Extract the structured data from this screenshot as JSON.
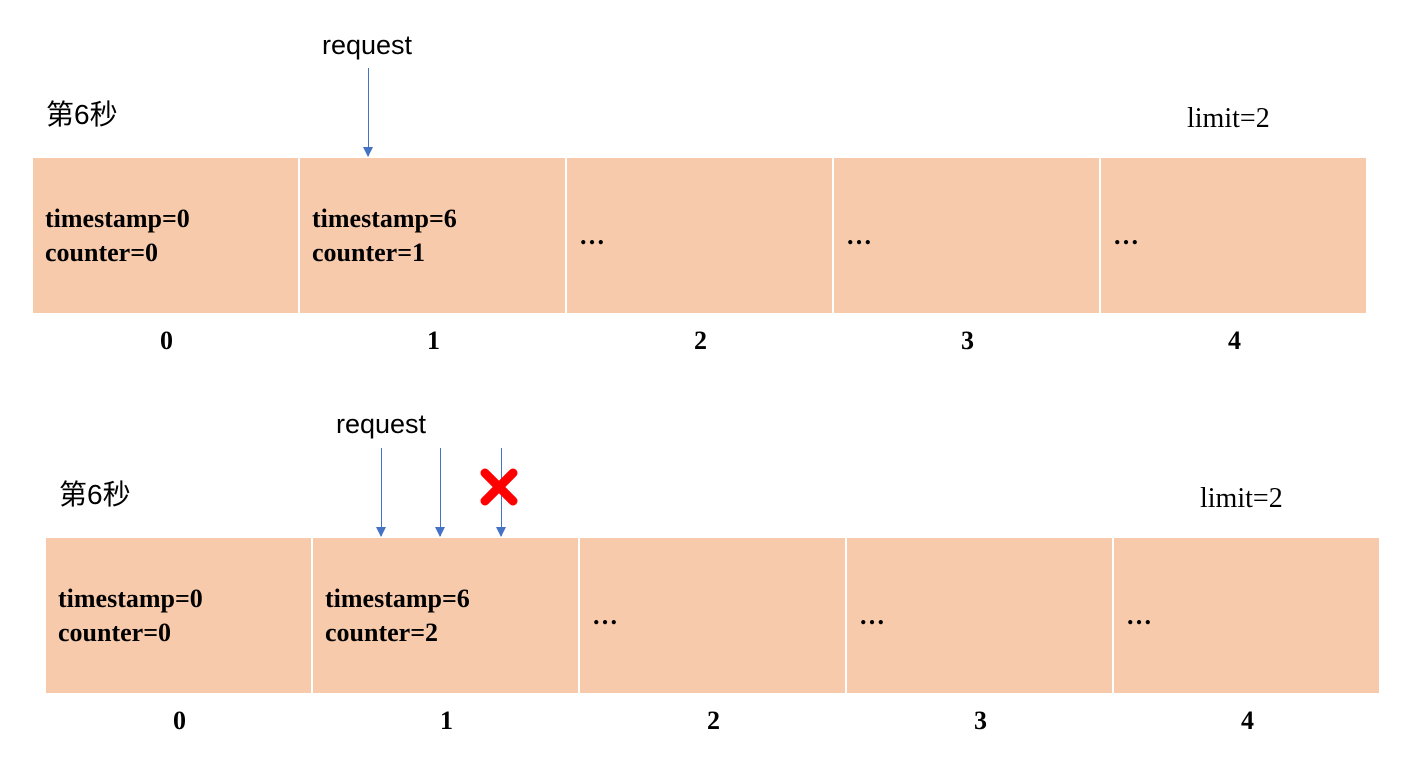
{
  "panels": [
    {
      "title": "第6秒",
      "limit_label": "limit=2",
      "request_label": "request",
      "accepted_requests": 1,
      "rejected_requests": 0,
      "buckets": [
        {
          "index": "0",
          "line1": "timestamp=0",
          "line2": "counter=0"
        },
        {
          "index": "1",
          "line1": "timestamp=6",
          "line2": "counter=1"
        },
        {
          "index": "2",
          "line1": "…",
          "line2": ""
        },
        {
          "index": "3",
          "line1": "…",
          "line2": ""
        },
        {
          "index": "4",
          "line1": "…",
          "line2": ""
        }
      ]
    },
    {
      "title": "第6秒",
      "limit_label": "limit=2",
      "request_label": "request",
      "accepted_requests": 2,
      "rejected_requests": 1,
      "buckets": [
        {
          "index": "0",
          "line1": "timestamp=0",
          "line2": "counter=0"
        },
        {
          "index": "1",
          "line1": "timestamp=6",
          "line2": "counter=2"
        },
        {
          "index": "2",
          "line1": "…",
          "line2": ""
        },
        {
          "index": "3",
          "line1": "…",
          "line2": ""
        },
        {
          "index": "4",
          "line1": "…",
          "line2": ""
        }
      ]
    }
  ],
  "colors": {
    "bucket_fill": "#f7caac",
    "arrow": "#4472c4",
    "reject": "#ff0000"
  },
  "icons": {
    "reject": "x-mark-icon",
    "request": "arrow-down-icon"
  }
}
